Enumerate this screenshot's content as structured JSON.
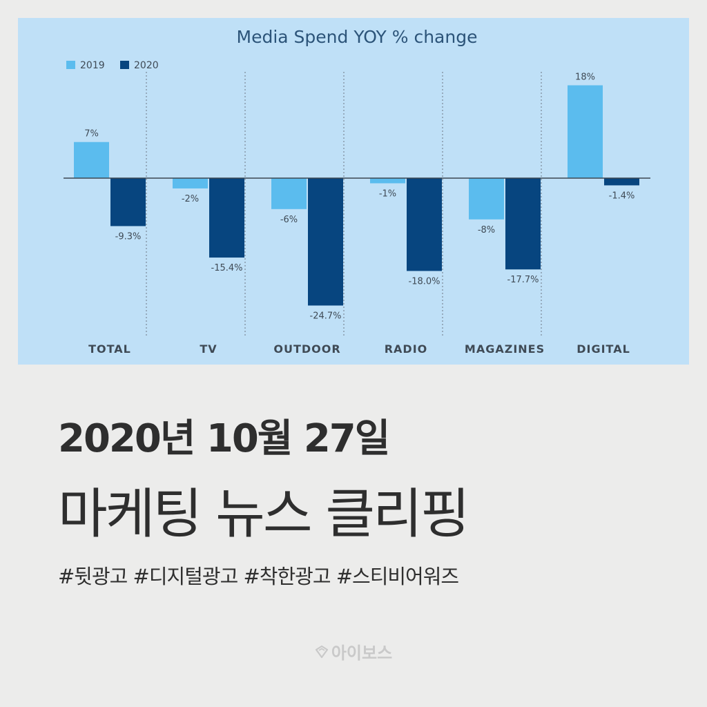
{
  "chart_data": {
    "type": "bar",
    "title": "Media Spend YOY % change",
    "categories": [
      "TOTAL",
      "TV",
      "OUTDOOR",
      "RADIO",
      "MAGAZINES",
      "DIGITAL"
    ],
    "series": [
      {
        "name": "2019",
        "values": [
          7,
          -2,
          -6,
          -1,
          -8,
          18
        ],
        "labels": [
          "7%",
          "-2%",
          "-6%",
          "-1%",
          "-8%",
          "18%"
        ],
        "color": "#5bbcee"
      },
      {
        "name": "2020",
        "values": [
          -9.3,
          -15.4,
          -24.7,
          -18.0,
          -17.7,
          -1.4
        ],
        "labels": [
          "-9.3%",
          "-15.4%",
          "-24.7%",
          "-18.0%",
          "-17.7%",
          "-1.4%"
        ],
        "color": "#07457f"
      }
    ],
    "ylim": [
      -27,
      20
    ],
    "legend": "top-left",
    "grid": false,
    "text_color": "#3f4a55",
    "title_color": "#2c5479"
  },
  "date_title": "2020년 10월 27일",
  "headline": "마케팅 뉴스 클리핑",
  "hashtags": "#뒷광고 #디지털광고 #착한광고 #스티비어워즈",
  "brand": {
    "name": "아이보스",
    "icon": "ibos-logo-icon"
  }
}
